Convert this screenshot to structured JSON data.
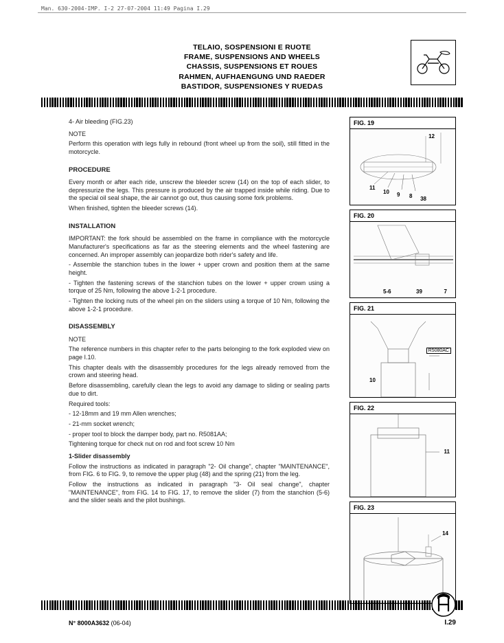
{
  "meta": {
    "header_line": "Man. 630-2004-IMP. I-2  27-07-2004  11:49  Pagina I.29"
  },
  "section_header": {
    "l1": "TELAIO, SOSPENSIONI E RUOTE",
    "l2": "FRAME, SUSPENSIONS AND WHEELS",
    "l3": "CHASSIS, SUSPENSIONS ET ROUES",
    "l4": "RAHMEN, AUFHAENGUNG UND RAEDER",
    "l5": "BASTIDOR, SUSPENSIONES Y RUEDAS"
  },
  "body": {
    "air_bleed_title": "4- Air bleeding (FIG.23)",
    "note1_label": "NOTE",
    "note1_text": "Perform this operation with legs fully in rebound (front wheel up from the soil), still fitted in the motorcycle.",
    "procedure_title": "PROCEDURE",
    "procedure_p1": "Every month or after each ride, unscrew the bleeder screw (14) on the top of each slider, to depressurize the legs. This pressure is produced by the air trapped inside while riding. Due to the special oil seal shape, the air cannot go out, thus causing some fork problems.",
    "procedure_p2": "When finished, tighten the bleeder screws (14).",
    "install_title": "INSTALLATION",
    "install_p1": "IMPORTANT: the fork should be assembled on the frame in compliance with the motorcycle Manufacturer's specifications as far as the steering elements and the wheel fastening are concerned. An improper assembly can jeopardize both rider's safety and life.",
    "install_b1": "- Assemble the stanchion tubes in the lower + upper crown and position them at the same height.",
    "install_b2": "- Tighten the fastening screws of the stanchion tubes on the lower + upper crown using a torque of 25 Nm, following the above 1-2-1 procedure.",
    "install_b3": "- Tighten the locking nuts of the wheel pin on the sliders using a torque of 10 Nm, following the above 1-2-1 procedure.",
    "disasm_title": "DISASSEMBLY",
    "note2_label": "NOTE",
    "note2_p1": "The reference numbers in this chapter refer to the parts belonging to the fork exploded view on page I.10.",
    "note2_p2": "This chapter deals with the disassembly procedures for the legs already removed from the crown and steering head.",
    "note2_p3": "Before disassembling, carefully clean the legs to avoid any damage to sliding or sealing parts due to dirt.",
    "tools_label": "Required tools:",
    "tools_1": "- 12-18mm and 19 mm Allen wrenches;",
    "tools_2": "- 21-mm socket wrench;",
    "tools_3": "- proper tool to block the damper body, part no. R5081AA;",
    "tools_4": "Tightening torque for check nut on rod and foot screw 10 Nm",
    "slider_title": "1-Slider disassembly",
    "slider_p1": "Follow the instructions as indicated in paragraph \"2- Oil change\", chapter \"MAINTENANCE\", from FIG. 6 to FIG. 9, to remove the upper plug (48) and the spring (21) from the leg.",
    "slider_p2": "Follow the instructions as indicated in paragraph \"3- Oil seal change\", chapter \"MAINTENANCE\", from FIG. 14 to FIG. 17, to remove the slider (7) from the stanchion (5-6) and the slider seals and the pilot bushings."
  },
  "figures": {
    "f19": {
      "label": "FIG. 19",
      "c12": "12",
      "c11": "11",
      "c10": "10",
      "c9": "9",
      "c8": "8",
      "c38": "38"
    },
    "f20": {
      "label": "FIG. 20",
      "c56": "5-6",
      "c39": "39",
      "c7": "7"
    },
    "f21": {
      "label": "FIG. 21",
      "c10": "10",
      "part": "R5080AC"
    },
    "f22": {
      "label": "FIG. 22",
      "c11": "11"
    },
    "f23": {
      "label": "FIG. 23",
      "c14": "14"
    }
  },
  "footer": {
    "docnum": "N° 8000A3632",
    "docrev": "(06-04)",
    "pagenum": "I.29"
  }
}
